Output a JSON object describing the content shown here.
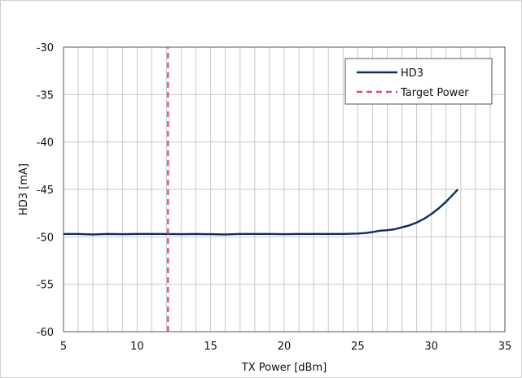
{
  "chart_data": {
    "type": "line",
    "title": "",
    "xlabel": "TX Power [dBm]",
    "ylabel": "HD3 [mA]",
    "xlim": [
      5,
      35
    ],
    "ylim": [
      -60,
      -30
    ],
    "x_major_ticks": [
      5,
      10,
      15,
      20,
      25,
      30,
      35
    ],
    "x_minor_step": 1,
    "y_major_ticks": [
      -60,
      -55,
      -50,
      -45,
      -40,
      -35,
      -30
    ],
    "y_tick_labels": [
      "-60",
      "-55",
      "-50",
      "-45",
      "-40",
      "-35",
      "-30"
    ],
    "x_tick_labels": [
      "5",
      "10",
      "15",
      "20",
      "25",
      "30",
      "35"
    ],
    "grid": true,
    "legend_position": "top-right",
    "series": [
      {
        "name": "HD3",
        "color": "#13295e",
        "style": "solid",
        "points": [
          [
            5.0,
            -49.7
          ],
          [
            6.0,
            -49.7
          ],
          [
            7.0,
            -49.75
          ],
          [
            8.0,
            -49.7
          ],
          [
            9.0,
            -49.72
          ],
          [
            10.0,
            -49.7
          ],
          [
            11.0,
            -49.7
          ],
          [
            12.0,
            -49.7
          ],
          [
            13.0,
            -49.72
          ],
          [
            14.0,
            -49.7
          ],
          [
            15.0,
            -49.72
          ],
          [
            16.0,
            -49.75
          ],
          [
            17.0,
            -49.7
          ],
          [
            18.0,
            -49.7
          ],
          [
            19.0,
            -49.7
          ],
          [
            20.0,
            -49.72
          ],
          [
            21.0,
            -49.7
          ],
          [
            22.0,
            -49.7
          ],
          [
            23.0,
            -49.7
          ],
          [
            24.0,
            -49.7
          ],
          [
            25.0,
            -49.65
          ],
          [
            25.5,
            -49.6
          ],
          [
            26.0,
            -49.5
          ],
          [
            26.5,
            -49.35
          ],
          [
            27.0,
            -49.3
          ],
          [
            27.5,
            -49.2
          ],
          [
            28.0,
            -49.0
          ],
          [
            28.5,
            -48.8
          ],
          [
            29.0,
            -48.5
          ],
          [
            29.5,
            -48.1
          ],
          [
            30.0,
            -47.6
          ],
          [
            30.5,
            -47.0
          ],
          [
            31.0,
            -46.3
          ],
          [
            31.5,
            -45.5
          ],
          [
            31.8,
            -45.0
          ]
        ]
      },
      {
        "name": "Target Power",
        "color": "#e83e8c",
        "style": "dashed",
        "points": [
          [
            12.1,
            -60
          ],
          [
            12.1,
            -30
          ]
        ]
      }
    ]
  }
}
